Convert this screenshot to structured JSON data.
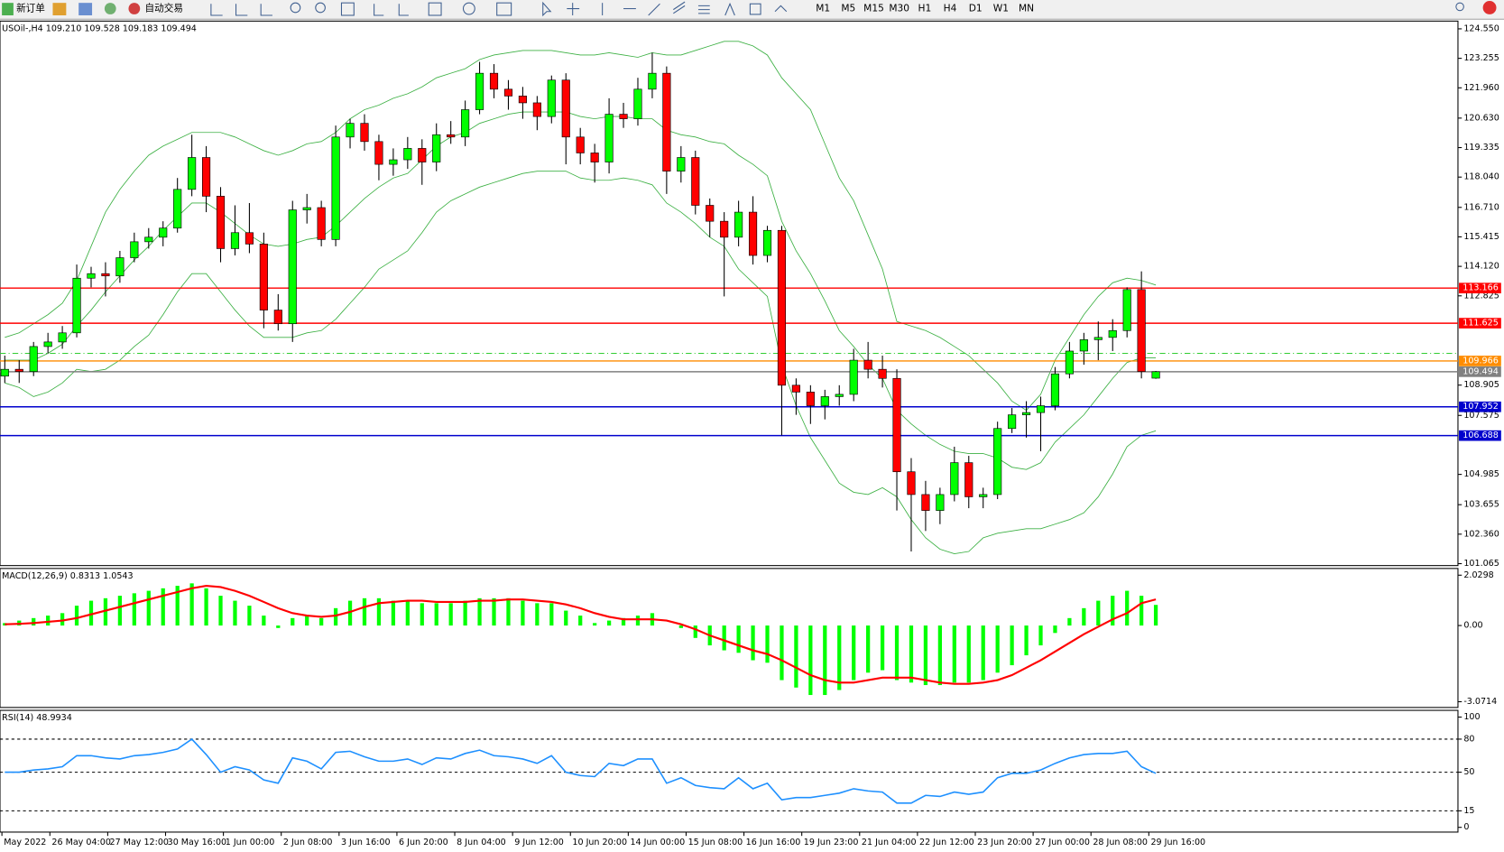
{
  "toolbar": {
    "new_order": "新订单",
    "auto_trade": "自动交易",
    "timeframes": [
      "M1",
      "M5",
      "M15",
      "M30",
      "H1",
      "H4",
      "D1",
      "W1",
      "MN"
    ]
  },
  "price_chart": {
    "type": "candlestick",
    "header": "USOil-,H4  109.210 109.528 109.183 109.494",
    "ylim": [
      100.98,
      124.89
    ],
    "yticks": [
      {
        "value": 124.55,
        "label": "124.550"
      },
      123.255,
      {
        "value": 121.96,
        "label": "121.960"
      },
      {
        "value": 120.63,
        "label": "120.630"
      },
      119.335,
      {
        "value": 118.04,
        "label": "118.040"
      },
      {
        "value": 116.71,
        "label": "116.710"
      },
      115.415,
      {
        "value": 114.12,
        "label": "114.120"
      },
      112.825,
      108.905,
      107.575,
      104.985,
      103.655,
      {
        "value": 102.36,
        "label": "102.360"
      },
      101.065
    ],
    "up_color": "#00ff00",
    "down_color": "#ff0000",
    "band_color": "#3cb043",
    "candles": [
      [
        109.3,
        110.2,
        109.0,
        109.6
      ],
      [
        109.6,
        110.0,
        109.0,
        109.5
      ],
      [
        109.5,
        110.8,
        109.3,
        110.6
      ],
      [
        110.6,
        111.2,
        110.3,
        110.8
      ],
      [
        110.8,
        111.5,
        110.5,
        111.2
      ],
      [
        111.2,
        114.2,
        111.0,
        113.6
      ],
      [
        113.6,
        114.1,
        113.2,
        113.8
      ],
      [
        113.8,
        114.3,
        112.8,
        113.7
      ],
      [
        113.7,
        114.8,
        113.4,
        114.5
      ],
      [
        114.5,
        115.6,
        114.3,
        115.2
      ],
      [
        115.2,
        115.8,
        114.9,
        115.4
      ],
      [
        115.4,
        116.1,
        115.0,
        115.8
      ],
      [
        115.8,
        118.0,
        115.6,
        117.5
      ],
      [
        117.5,
        119.9,
        117.2,
        118.9
      ],
      [
        118.9,
        119.4,
        116.5,
        117.2
      ],
      [
        117.2,
        117.6,
        114.3,
        114.9
      ],
      [
        114.9,
        116.8,
        114.6,
        115.6
      ],
      [
        115.6,
        116.9,
        114.7,
        115.1
      ],
      [
        115.1,
        115.6,
        111.4,
        112.2
      ],
      [
        112.2,
        112.9,
        111.3,
        111.6
      ],
      [
        111.6,
        117.0,
        110.8,
        116.6
      ],
      [
        116.6,
        117.3,
        116.0,
        116.7
      ],
      [
        116.7,
        117.0,
        115.0,
        115.3
      ],
      [
        115.3,
        120.3,
        115.0,
        119.8
      ],
      [
        119.8,
        120.6,
        119.3,
        120.4
      ],
      [
        120.4,
        120.8,
        119.2,
        119.6
      ],
      [
        119.6,
        119.9,
        117.9,
        118.6
      ],
      [
        118.6,
        119.3,
        118.1,
        118.8
      ],
      [
        118.8,
        119.8,
        118.4,
        119.3
      ],
      [
        119.3,
        119.7,
        117.7,
        118.7
      ],
      [
        118.7,
        120.4,
        118.3,
        119.9
      ],
      [
        119.9,
        120.5,
        119.5,
        119.8
      ],
      [
        119.8,
        121.4,
        119.4,
        121.0
      ],
      [
        121.0,
        123.1,
        120.8,
        122.6
      ],
      [
        122.6,
        123.0,
        121.5,
        121.9
      ],
      [
        121.9,
        122.3,
        121.0,
        121.6
      ],
      [
        121.6,
        122.0,
        120.6,
        121.3
      ],
      [
        121.3,
        121.6,
        120.1,
        120.7
      ],
      [
        120.7,
        122.5,
        120.4,
        122.3
      ],
      [
        122.3,
        122.6,
        118.6,
        119.8
      ],
      [
        119.8,
        120.2,
        118.6,
        119.1
      ],
      [
        119.1,
        119.5,
        117.8,
        118.7
      ],
      [
        118.7,
        121.5,
        118.2,
        120.8
      ],
      [
        120.8,
        121.3,
        120.2,
        120.6
      ],
      [
        120.6,
        122.4,
        120.3,
        121.9
      ],
      [
        121.9,
        123.5,
        121.5,
        122.6
      ],
      [
        122.6,
        122.9,
        117.3,
        118.3
      ],
      [
        118.3,
        119.4,
        117.8,
        118.9
      ],
      [
        118.9,
        119.2,
        116.4,
        116.8
      ],
      [
        116.8,
        117.1,
        115.4,
        116.1
      ],
      [
        116.1,
        116.5,
        112.8,
        115.4
      ],
      [
        115.4,
        117.0,
        115.0,
        116.5
      ],
      [
        116.5,
        117.2,
        114.2,
        114.6
      ],
      [
        114.6,
        115.9,
        114.3,
        115.7
      ],
      [
        115.7,
        115.9,
        106.7,
        108.9
      ],
      [
        108.9,
        109.2,
        107.6,
        108.6
      ],
      [
        108.6,
        108.9,
        107.2,
        108.0
      ],
      [
        108.0,
        108.7,
        107.4,
        108.4
      ],
      [
        108.4,
        108.9,
        108.0,
        108.5
      ],
      [
        108.5,
        110.5,
        108.2,
        110.0
      ],
      [
        110.0,
        110.8,
        109.2,
        109.6
      ],
      [
        109.6,
        110.2,
        108.8,
        109.2
      ],
      [
        109.2,
        109.6,
        103.4,
        105.1
      ],
      [
        105.1,
        105.7,
        101.6,
        104.1
      ],
      [
        104.1,
        104.7,
        102.5,
        103.4
      ],
      [
        103.4,
        104.4,
        102.8,
        104.1
      ],
      [
        104.1,
        106.2,
        103.8,
        105.5
      ],
      [
        105.5,
        105.8,
        103.5,
        104.0
      ],
      [
        104.0,
        104.4,
        103.5,
        104.1
      ],
      [
        104.1,
        107.3,
        103.9,
        107.0
      ],
      [
        107.0,
        107.9,
        106.8,
        107.6
      ],
      [
        107.6,
        108.2,
        106.6,
        107.7
      ],
      [
        107.7,
        108.4,
        106.0,
        108.0
      ],
      [
        108.0,
        109.7,
        107.8,
        109.4
      ],
      [
        109.4,
        110.8,
        109.2,
        110.4
      ],
      [
        110.4,
        111.2,
        109.8,
        110.9
      ],
      [
        110.9,
        111.7,
        110.0,
        111.0
      ],
      [
        111.0,
        111.8,
        110.4,
        111.3
      ],
      [
        111.3,
        113.2,
        111.0,
        113.1
      ],
      [
        113.1,
        113.9,
        109.2,
        109.5
      ],
      [
        109.21,
        109.528,
        109.183,
        109.494
      ]
    ],
    "bands": {
      "upper": [
        111.0,
        111.2,
        111.6,
        112.0,
        112.5,
        113.5,
        115.0,
        116.5,
        117.5,
        118.3,
        119.0,
        119.4,
        119.7,
        120.0,
        120.0,
        120.0,
        119.8,
        119.5,
        119.2,
        119.0,
        119.2,
        119.5,
        119.6,
        120.0,
        120.6,
        121.0,
        121.2,
        121.5,
        121.7,
        122.0,
        122.4,
        122.6,
        122.8,
        123.2,
        123.4,
        123.5,
        123.6,
        123.6,
        123.6,
        123.5,
        123.4,
        123.4,
        123.5,
        123.4,
        123.3,
        123.5,
        123.4,
        123.4,
        123.6,
        123.8,
        124.0,
        124.0,
        123.8,
        123.4,
        122.4,
        121.7,
        121.0,
        119.5,
        118.0,
        117.0,
        115.5,
        114.0,
        111.7,
        111.5,
        111.3,
        111.0,
        110.6,
        110.2,
        109.6,
        109.0,
        108.2,
        107.8,
        108.5,
        110.0,
        111.0,
        112.0,
        112.8,
        113.4,
        113.6,
        113.5,
        113.3
      ],
      "middle": [
        110.0,
        110.0,
        110.0,
        110.3,
        110.7,
        111.5,
        112.2,
        113.0,
        113.7,
        114.4,
        115.0,
        115.7,
        116.3,
        116.9,
        116.9,
        116.5,
        116.0,
        115.5,
        115.1,
        115.0,
        115.1,
        115.3,
        115.4,
        115.9,
        116.5,
        117.1,
        117.6,
        118.0,
        118.2,
        118.8,
        119.4,
        119.8,
        120.0,
        120.4,
        120.6,
        120.8,
        120.9,
        120.9,
        120.9,
        120.9,
        120.7,
        120.6,
        120.7,
        120.7,
        120.6,
        120.6,
        120.1,
        119.9,
        119.8,
        119.6,
        119.5,
        119.0,
        118.6,
        118.1,
        116.1,
        114.8,
        113.8,
        112.6,
        111.3,
        110.6,
        109.8,
        109.2,
        107.8,
        107.2,
        106.7,
        106.3,
        106.0,
        105.9,
        105.9,
        105.7,
        105.3,
        105.2,
        105.5,
        106.4,
        107.0,
        107.6,
        108.4,
        109.2,
        109.9,
        110.1,
        110.1
      ],
      "lower": [
        109.0,
        108.8,
        108.4,
        108.6,
        109.0,
        109.6,
        109.5,
        109.6,
        110.0,
        110.6,
        111.1,
        112.0,
        113.0,
        113.8,
        113.8,
        113.0,
        112.2,
        111.5,
        111.0,
        111.0,
        111.0,
        111.2,
        111.3,
        111.8,
        112.5,
        113.2,
        114.0,
        114.4,
        114.8,
        115.6,
        116.5,
        117.0,
        117.3,
        117.6,
        117.8,
        118.0,
        118.2,
        118.3,
        118.3,
        118.3,
        118.0,
        117.9,
        117.9,
        118.0,
        117.9,
        117.7,
        116.9,
        116.5,
        116.0,
        115.4,
        115.0,
        114.0,
        113.4,
        112.8,
        109.8,
        108.0,
        106.6,
        105.6,
        104.6,
        104.2,
        104.1,
        104.4,
        104.0,
        103.0,
        102.2,
        101.7,
        101.5,
        101.6,
        102.2,
        102.4,
        102.5,
        102.6,
        102.6,
        102.8,
        103.0,
        103.3,
        104.0,
        105.0,
        106.2,
        106.7,
        106.9
      ]
    },
    "levels": [
      {
        "value": 113.166,
        "color": "#ff0000"
      },
      {
        "value": 111.625,
        "color": "#ff0000"
      },
      {
        "value": 109.966,
        "color": "#ff8c00"
      },
      {
        "value": 109.494,
        "color": "#808080"
      },
      {
        "value": 107.952,
        "color": "#0000cd"
      },
      {
        "value": 106.688,
        "color": "#0000cd"
      }
    ],
    "dashdot_level": {
      "value": 110.3,
      "color": "#32cd32"
    },
    "x_labels": [
      "May 2022",
      "26 May 04:00",
      "27 May 12:00",
      "30 May 16:00",
      "1 Jun 00:00",
      "2 Jun 08:00",
      "3 Jun 16:00",
      "6 Jun 20:00",
      "8 Jun 04:00",
      "9 Jun 12:00",
      "10 Jun 20:00",
      "14 Jun 00:00",
      "15 Jun 08:00",
      "16 Jun 16:00",
      "19 Jun 23:00",
      "21 Jun 04:00",
      "22 Jun 12:00",
      "23 Jun 20:00",
      "27 Jun 00:00",
      "28 Jun 08:00",
      "29 Jun 16:00"
    ]
  },
  "macd_chart": {
    "type": "macd",
    "header": "MACD(12,26,9) 0.8313 1.0543",
    "ylim": [
      -3.303,
      2.3
    ],
    "yticks": [
      2.0298,
      {
        "value": 0,
        "label": "0.00"
      },
      -3.0714
    ],
    "hist_color": "#00ff00",
    "signal_color": "#ff0000",
    "histogram": [
      0.1,
      0.2,
      0.3,
      0.4,
      0.5,
      0.8,
      1.0,
      1.1,
      1.2,
      1.3,
      1.4,
      1.5,
      1.6,
      1.7,
      1.5,
      1.2,
      1.0,
      0.8,
      0.4,
      -0.1,
      0.3,
      0.4,
      0.3,
      0.7,
      1.0,
      1.1,
      1.1,
      1.0,
      1.0,
      0.9,
      0.9,
      0.9,
      1.0,
      1.1,
      1.1,
      1.1,
      1.0,
      0.9,
      0.9,
      0.6,
      0.4,
      0.1,
      0.2,
      0.3,
      0.4,
      0.5,
      0.0,
      -0.1,
      -0.5,
      -0.8,
      -1.0,
      -1.1,
      -1.4,
      -1.5,
      -2.2,
      -2.5,
      -2.8,
      -2.8,
      -2.6,
      -2.2,
      -1.9,
      -1.8,
      -2.2,
      -2.3,
      -2.4,
      -2.4,
      -2.3,
      -2.3,
      -2.2,
      -1.9,
      -1.6,
      -1.2,
      -0.8,
      -0.3,
      0.3,
      0.7,
      1.0,
      1.2,
      1.4,
      1.2,
      0.8313
    ],
    "signal": [
      0.05,
      0.07,
      0.1,
      0.15,
      0.2,
      0.3,
      0.45,
      0.6,
      0.75,
      0.9,
      1.05,
      1.2,
      1.35,
      1.5,
      1.6,
      1.55,
      1.4,
      1.2,
      0.95,
      0.7,
      0.5,
      0.4,
      0.35,
      0.4,
      0.55,
      0.75,
      0.9,
      0.95,
      1.0,
      1.0,
      0.95,
      0.95,
      0.95,
      1.0,
      1.0,
      1.05,
      1.05,
      1.0,
      0.95,
      0.85,
      0.7,
      0.5,
      0.35,
      0.25,
      0.25,
      0.25,
      0.2,
      0.05,
      -0.15,
      -0.4,
      -0.6,
      -0.8,
      -1.0,
      -1.15,
      -1.4,
      -1.7,
      -2.0,
      -2.2,
      -2.3,
      -2.3,
      -2.2,
      -2.1,
      -2.1,
      -2.1,
      -2.2,
      -2.3,
      -2.35,
      -2.35,
      -2.3,
      -2.2,
      -2.0,
      -1.7,
      -1.4,
      -1.05,
      -0.7,
      -0.35,
      -0.05,
      0.25,
      0.5,
      0.9,
      1.0543
    ]
  },
  "rsi_chart": {
    "type": "rsi",
    "header": "RSI(14) 48.9934",
    "ylim": [
      -4.3,
      106.1
    ],
    "yticks": [
      100,
      80,
      50,
      15,
      0
    ],
    "levels": [
      80,
      50,
      15
    ],
    "color": "#1e90ff",
    "values": [
      50,
      50,
      52,
      53,
      55,
      65,
      65,
      63,
      62,
      65,
      66,
      68,
      71,
      80,
      66,
      50,
      55,
      52,
      43,
      40,
      63,
      60,
      53,
      68,
      69,
      64,
      60,
      60,
      62,
      57,
      63,
      62,
      67,
      70,
      65,
      64,
      62,
      58,
      65,
      50,
      47,
      46,
      58,
      56,
      62,
      62,
      40,
      45,
      38,
      36,
      35,
      45,
      35,
      40,
      25,
      27,
      27,
      29,
      31,
      35,
      33,
      32,
      22,
      22,
      29,
      28,
      32,
      30,
      32,
      45,
      49,
      49,
      52,
      58,
      63,
      66,
      67,
      67,
      69,
      55,
      48.9934
    ]
  }
}
